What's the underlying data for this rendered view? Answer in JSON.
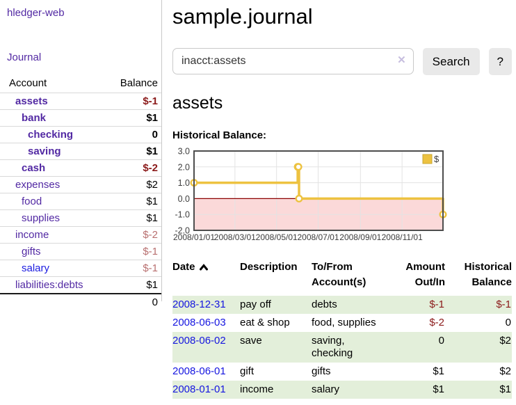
{
  "app": {
    "title": "hledger-web"
  },
  "sidebar": {
    "journal_link": "Journal",
    "accounts": {
      "account_header": "Account",
      "balance_header": "Balance",
      "rows": [
        {
          "name": "assets",
          "balance": "$-1",
          "level": 1,
          "bold": true
        },
        {
          "name": "bank",
          "balance": "$1",
          "level": 2,
          "bold": true
        },
        {
          "name": "checking",
          "balance": "0",
          "level": 3,
          "bold": true
        },
        {
          "name": "saving",
          "balance": "$1",
          "level": 3,
          "bold": true
        },
        {
          "name": "cash",
          "balance": "$-2",
          "level": 2,
          "bold": true
        },
        {
          "name": "expenses",
          "balance": "$2",
          "level": 1,
          "bold": false
        },
        {
          "name": "food",
          "balance": "$1",
          "level": 2,
          "bold": false
        },
        {
          "name": "supplies",
          "balance": "$1",
          "level": 2,
          "bold": false
        },
        {
          "name": "income",
          "balance": "$-2",
          "level": 1,
          "bold": false
        },
        {
          "name": "gifts",
          "balance": "$-1",
          "level": 2,
          "bold": false
        },
        {
          "name": "salary",
          "balance": "$-1",
          "level": 2,
          "bold": false,
          "link_color": "blue"
        },
        {
          "name": "liabilities:debts",
          "balance": "$1",
          "level": 1,
          "bold": false
        }
      ],
      "total": "0"
    }
  },
  "main": {
    "title": "sample.journal",
    "search": {
      "value": "inacct:assets",
      "clear_icon": "✕",
      "search_label": "Search",
      "help_label": "?"
    },
    "heading": "assets"
  },
  "chart_data": {
    "type": "line",
    "step": true,
    "title": "Historical Balance:",
    "series": [
      {
        "name": "$",
        "color": "#edc240",
        "points": [
          [
            "2008-01-01",
            1
          ],
          [
            "2008-06-01",
            2
          ],
          [
            "2008-06-02",
            2
          ],
          [
            "2008-06-03",
            0
          ],
          [
            "2008-12-31",
            -1
          ]
        ]
      }
    ],
    "xlim": [
      "2008-01-01",
      "2008-12-31"
    ],
    "ylim": [
      -2,
      3
    ],
    "x_tick_labels": [
      "2008/01/01",
      "2008/03/01",
      "2008/05/01",
      "2008/07/01",
      "2008/09/01",
      "2008/11/01"
    ],
    "y_tick_labels": [
      "3.0",
      "2.0",
      "1.0",
      "0.0",
      "-1.0",
      "-2.0"
    ],
    "legend": {
      "label": "$",
      "position": "top-right"
    },
    "grid": true,
    "marker": "open-circle",
    "negative_region_color": "#fbd9d9",
    "zero_line_color": "#8b0000",
    "border_color": "#4d4d4d",
    "gridline_color": "#e3e3e3",
    "tick_label_color": "#3d3d3d"
  },
  "register": {
    "headers": [
      {
        "l1": "Date",
        "l2": ""
      },
      {
        "l1": "Description",
        "l2": ""
      },
      {
        "l1": "To/From",
        "l2": "Account(s)"
      },
      {
        "l1": "Amount",
        "l2": "Out/In"
      },
      {
        "l1": "Historical",
        "l2": "Balance"
      }
    ],
    "sort": {
      "column": "Date",
      "direction": "ascending"
    },
    "rows": [
      {
        "date": "2008-12-31",
        "description": "pay off",
        "accounts": "debts",
        "amount": "$-1",
        "balance": "$-1"
      },
      {
        "date": "2008-06-03",
        "description": "eat & shop",
        "accounts": "food, supplies",
        "amount": "$-2",
        "balance": "0"
      },
      {
        "date": "2008-06-02",
        "description": "save",
        "accounts": "saving, checking",
        "amount": "0",
        "balance": "$2"
      },
      {
        "date": "2008-06-01",
        "description": "gift",
        "accounts": "gifts",
        "amount": "$1",
        "balance": "$2"
      },
      {
        "date": "2008-01-01",
        "description": "income",
        "accounts": "salary",
        "amount": "$1",
        "balance": "$1"
      }
    ]
  },
  "colors": {
    "link_purple": "#5229a3",
    "link_blue": "#1b1be0",
    "negative_strong": "#8b1a1a",
    "negative_soft": "#b86f6f",
    "row_green": "#e3efda",
    "series_gold": "#edc240",
    "chart_negative_bg": "#fbd9d9",
    "zero_line": "#8b0000"
  }
}
